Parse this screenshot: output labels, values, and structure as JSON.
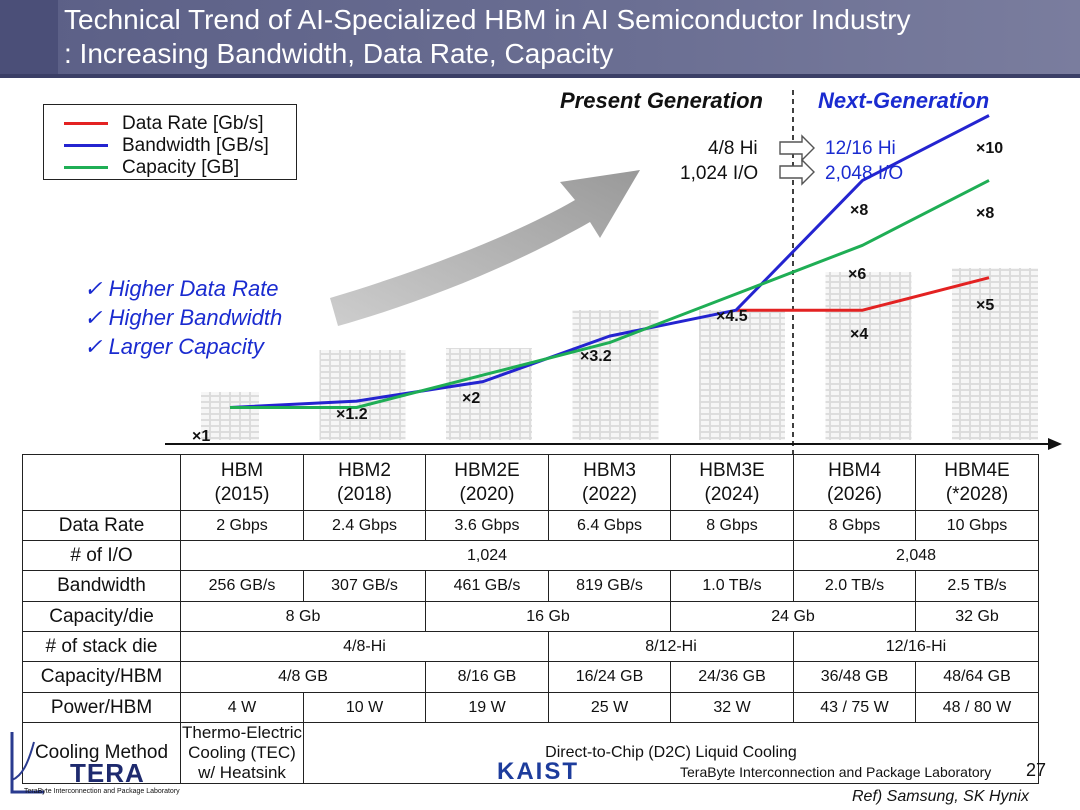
{
  "title": {
    "line1": "Technical Trend of AI-Specialized HBM in AI Semiconductor Industry",
    "line2": ": Increasing Bandwidth, Data Rate, Capacity"
  },
  "legend": [
    {
      "label": "Data Rate [Gb/s]",
      "color": "#e32222"
    },
    {
      "label": "Bandwidth [GB/s]",
      "color": "#2424d0"
    },
    {
      "label": "Capacity [GB]",
      "color": "#1fae55"
    }
  ],
  "generations": {
    "present": "Present Generation",
    "next": "Next-Generation",
    "present_color": "#111111",
    "next_color": "#1a2bd0"
  },
  "stack_info": {
    "present_hi": "4/8 Hi",
    "present_io": "1,024 I/O",
    "next_hi": "12/16 Hi",
    "next_io": "2,048 I/O"
  },
  "checklist": [
    "Higher Data Rate",
    "Higher Bandwidth",
    "Larger Capacity"
  ],
  "checkmark": "✓",
  "multipliers": {
    "hbm": "×1",
    "hbm2": "×1.2",
    "hbm2e": "×2",
    "hbm3": "×3.2",
    "hbm3e": "×4.5",
    "hbm4_bw": "×8",
    "hbm4_cap": "×6",
    "hbm4_dr": "×4",
    "hbm4e_bw": "×10",
    "hbm4e_cap": "×8",
    "hbm4e_dr": "×5"
  },
  "chart_data": {
    "type": "line",
    "categories": [
      "HBM",
      "HBM2",
      "HBM2E",
      "HBM3",
      "HBM3E",
      "HBM4",
      "HBM4E"
    ],
    "series": [
      {
        "name": "Data Rate [Gb/s]",
        "color": "#e32222",
        "values": [
          1,
          1.2,
          1.8,
          3.2,
          4.0,
          4.0,
          5.0
        ],
        "start_index": 4
      },
      {
        "name": "Bandwidth [GB/s]",
        "color": "#2424d0",
        "values": [
          1,
          1.2,
          1.8,
          3.2,
          4.0,
          8.0,
          10.0
        ],
        "start_index": 0
      },
      {
        "name": "Capacity [GB]",
        "color": "#1fae55",
        "values": [
          1,
          1.0,
          2.0,
          3.0,
          4.5,
          6.0,
          8.0
        ],
        "start_index": 0
      }
    ],
    "ylim": [
      0,
      11
    ],
    "xlabel": "",
    "ylabel": "",
    "legend": "top-left",
    "grid": false
  },
  "table": {
    "columns": [
      {
        "name": "HBM",
        "year": "(2015)"
      },
      {
        "name": "HBM2",
        "year": "(2018)"
      },
      {
        "name": "HBM2E",
        "year": "(2020)"
      },
      {
        "name": "HBM3",
        "year": "(2022)"
      },
      {
        "name": "HBM3E",
        "year": "(2024)"
      },
      {
        "name": "HBM4",
        "year": "(2026)"
      },
      {
        "name": "HBM4E",
        "year": "(*2028)"
      }
    ],
    "rows": [
      {
        "label": "Data Rate",
        "cells": [
          {
            "text": "2 Gbps",
            "span": 1
          },
          {
            "text": "2.4 Gbps",
            "span": 1
          },
          {
            "text": "3.6 Gbps",
            "span": 1
          },
          {
            "text": "6.4 Gbps",
            "span": 1
          },
          {
            "text": "8 Gbps",
            "span": 1
          },
          {
            "text": "8 Gbps",
            "span": 1
          },
          {
            "text": "10 Gbps",
            "span": 1
          }
        ]
      },
      {
        "label": "# of I/O",
        "cells": [
          {
            "text": "1,024",
            "span": 5
          },
          {
            "text": "2,048",
            "span": 2
          }
        ]
      },
      {
        "label": "Bandwidth",
        "cells": [
          {
            "text": "256 GB/s",
            "span": 1
          },
          {
            "text": "307 GB/s",
            "span": 1
          },
          {
            "text": "461 GB/s",
            "span": 1
          },
          {
            "text": "819 GB/s",
            "span": 1
          },
          {
            "text": "1.0 TB/s",
            "span": 1
          },
          {
            "text": "2.0 TB/s",
            "span": 1
          },
          {
            "text": "2.5 TB/s",
            "span": 1
          }
        ]
      },
      {
        "label": "Capacity/die",
        "cells": [
          {
            "text": "8 Gb",
            "span": 2
          },
          {
            "text": "16 Gb",
            "span": 2
          },
          {
            "text": "24 Gb",
            "span": 2
          },
          {
            "text": "32 Gb",
            "span": 1
          }
        ]
      },
      {
        "label": "# of stack die",
        "cells": [
          {
            "text": "4/8-Hi",
            "span": 3
          },
          {
            "text": "8/12-Hi",
            "span": 2
          },
          {
            "text": "12/16-Hi",
            "span": 2
          }
        ]
      },
      {
        "label": "Capacity/HBM",
        "cells": [
          {
            "text": "4/8 GB",
            "span": 2
          },
          {
            "text": "8/16 GB",
            "span": 1
          },
          {
            "text": "16/24 GB",
            "span": 1
          },
          {
            "text": "24/36 GB",
            "span": 1
          },
          {
            "text": "36/48 GB",
            "span": 1
          },
          {
            "text": "48/64 GB",
            "span": 1
          }
        ]
      },
      {
        "label": "Power/HBM",
        "cells": [
          {
            "text": "4 W",
            "span": 1
          },
          {
            "text": "10 W",
            "span": 1
          },
          {
            "text": "19 W",
            "span": 1
          },
          {
            "text": "25 W",
            "span": 1
          },
          {
            "text": "32 W",
            "span": 1
          },
          {
            "text": "43 / 75 W",
            "span": 1
          },
          {
            "text": "48 / 80 W",
            "span": 1
          }
        ]
      },
      {
        "label": "Cooling Method",
        "cells": [
          {
            "text": "Thermo-Electric Cooling (TEC) w/ Heatsink",
            "span": 1,
            "wrap": true
          },
          {
            "text": "Direct-to-Chip (D2C) Liquid Cooling",
            "span": 6
          }
        ]
      }
    ]
  },
  "footer": {
    "lab": "TeraByte Interconnection and Package Laboratory",
    "page": "27",
    "ref": "Ref) Samsung, SK Hynix",
    "tera_logo": "TERA",
    "tera_sub": "TeraByte Interconnection and Package Laboratory",
    "kaist_logo": "KAIST"
  }
}
